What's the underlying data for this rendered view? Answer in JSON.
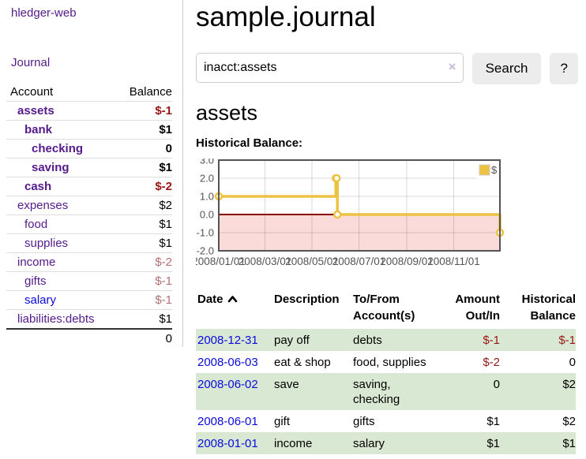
{
  "palette": {
    "link_purple": "#551a8b",
    "link_blue": "#0b0bdd",
    "neg_strong": "#9a1515",
    "neg_muted": "#b56f6f",
    "stripe_green": "#d9e8d2",
    "button_bg": "#ececec",
    "border_gray": "#cccccc",
    "row_border": "#dddddd"
  },
  "sidebar": {
    "brand": "hledger-web",
    "journal_link": "Journal",
    "accounts": {
      "headers": {
        "account": "Account",
        "balance": "Balance"
      },
      "rows": [
        {
          "name": "assets",
          "balance": "$-1",
          "depth": 1,
          "bold": true,
          "balance_style": "neg-strong",
          "link_style": "purple"
        },
        {
          "name": "bank",
          "balance": "$1",
          "depth": 2,
          "bold": true,
          "balance_style": "normal",
          "link_style": "purple"
        },
        {
          "name": "checking",
          "balance": "0",
          "depth": 3,
          "bold": true,
          "balance_style": "normal",
          "link_style": "purple"
        },
        {
          "name": "saving",
          "balance": "$1",
          "depth": 3,
          "bold": true,
          "balance_style": "normal",
          "link_style": "purple"
        },
        {
          "name": "cash",
          "balance": "$-2",
          "depth": 2,
          "bold": true,
          "balance_style": "neg-strong",
          "link_style": "purple"
        },
        {
          "name": "expenses",
          "balance": "$2",
          "depth": 1,
          "bold": false,
          "balance_style": "normal",
          "link_style": "purple"
        },
        {
          "name": "food",
          "balance": "$1",
          "depth": 2,
          "bold": false,
          "balance_style": "normal",
          "link_style": "purple"
        },
        {
          "name": "supplies",
          "balance": "$1",
          "depth": 2,
          "bold": false,
          "balance_style": "normal",
          "link_style": "purple"
        },
        {
          "name": "income",
          "balance": "$-2",
          "depth": 1,
          "bold": false,
          "balance_style": "neg-muted",
          "link_style": "purple"
        },
        {
          "name": "gifts",
          "balance": "$-1",
          "depth": 2,
          "bold": false,
          "balance_style": "neg-muted",
          "link_style": "purple"
        },
        {
          "name": "salary",
          "balance": "$-1",
          "depth": 2,
          "bold": false,
          "balance_style": "neg-muted",
          "link_style": "blue"
        },
        {
          "name": "liabilities:debts",
          "balance": "$1",
          "depth": 1,
          "bold": false,
          "balance_style": "normal",
          "link_style": "purple"
        }
      ],
      "total": "0"
    }
  },
  "header": {
    "title": "sample.journal"
  },
  "search": {
    "value": "inacct:assets",
    "clear_icon": "×",
    "search_button": "Search",
    "help_button": "?"
  },
  "account_view": {
    "heading": "assets",
    "chart_heading": "Historical Balance:"
  },
  "chart_data": {
    "type": "line",
    "step": true,
    "title": "Historical Balance",
    "series": [
      {
        "name": "$",
        "color": "#EDC240",
        "points": [
          [
            "2008-01-01",
            1
          ],
          [
            "2008-06-01",
            2
          ],
          [
            "2008-06-02",
            2
          ],
          [
            "2008-06-03",
            0
          ],
          [
            "2008-12-31",
            -1
          ]
        ]
      }
    ],
    "x_range": [
      "2008-01-01",
      "2008-12-31"
    ],
    "x_tick_labels": [
      "2008/01/01",
      "2008/03/01",
      "2008/05/01",
      "2008/07/01",
      "2008/09/01",
      "2008/11/01"
    ],
    "ylim": [
      -2,
      3
    ],
    "y_ticks": [
      3.0,
      2.0,
      1.0,
      0.0,
      -1.0,
      -2.0
    ],
    "grid": true,
    "legend_position": "top-right",
    "negative_region_color": "#fbdada",
    "zero_line_color": "#8b0000",
    "plot_border_color": "#545454",
    "gridline_color": "rgba(0,0,0,0.15)",
    "axis_label_color": "#545454"
  },
  "register": {
    "headers": {
      "date": "Date",
      "description": "Description",
      "accounts": "To/From Account(s)",
      "amount": "Amount Out/In",
      "balance": "Historical Balance"
    },
    "sort": {
      "column": "date",
      "icon_direction": "up"
    },
    "rows": [
      {
        "date": "2008-12-31",
        "description": "pay off",
        "accounts": "debts",
        "amount": "$-1",
        "balance": "$-1"
      },
      {
        "date": "2008-06-03",
        "description": "eat & shop",
        "accounts": "food, supplies",
        "amount": "$-2",
        "balance": "0"
      },
      {
        "date": "2008-06-02",
        "description": "save",
        "accounts": "saving, checking",
        "amount": "0",
        "balance": "$2"
      },
      {
        "date": "2008-06-01",
        "description": "gift",
        "accounts": "gifts",
        "amount": "$1",
        "balance": "$2"
      },
      {
        "date": "2008-01-01",
        "description": "income",
        "accounts": "salary",
        "amount": "$1",
        "balance": "$1"
      }
    ]
  }
}
